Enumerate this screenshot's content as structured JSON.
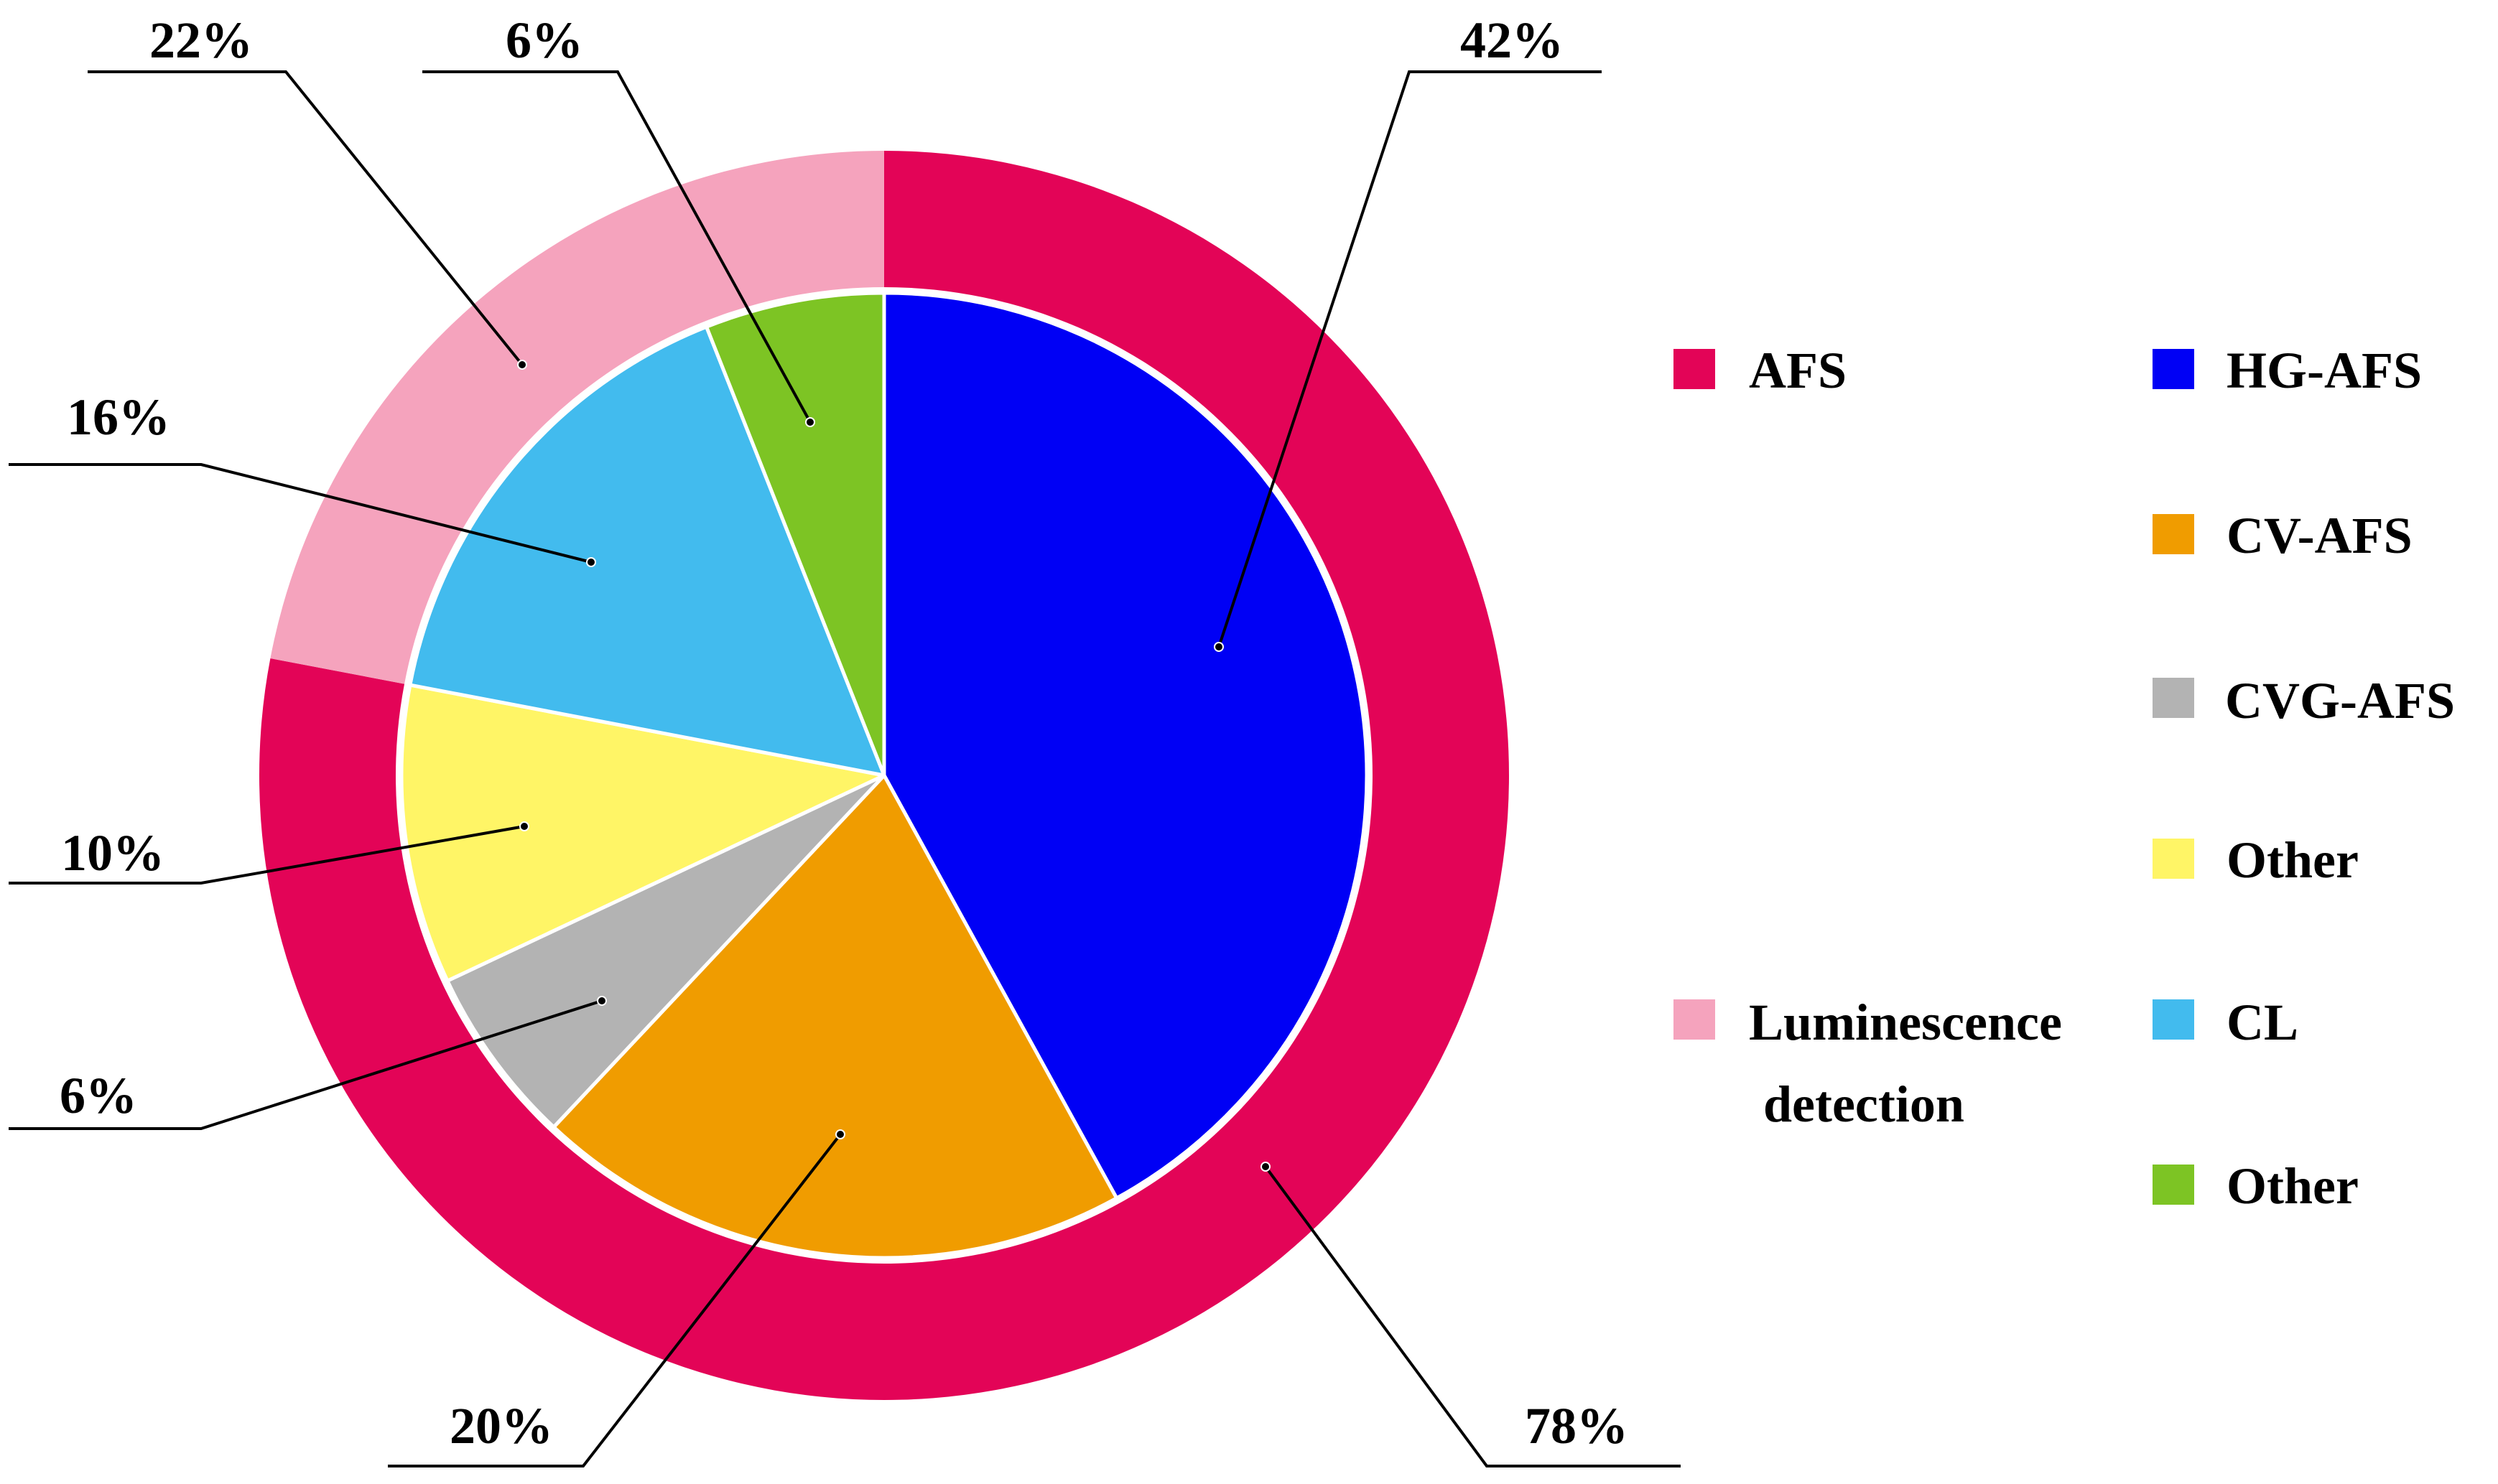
{
  "chart_data": {
    "type": "pie",
    "title": "",
    "rings": [
      {
        "name": "outer",
        "slices": [
          {
            "label": "AFS",
            "value": 78,
            "value_label": "78%",
            "color": "#e30457"
          },
          {
            "label": "Luminescence detection",
            "value": 22,
            "value_label": "22%",
            "color": "#f5a3bd"
          }
        ]
      },
      {
        "name": "inner",
        "slices": [
          {
            "label": "HG-AFS",
            "value": 42,
            "value_label": "42%",
            "color": "#0000f5"
          },
          {
            "label": "CV-AFS",
            "value": 20,
            "value_label": "20%",
            "color": "#f09c00"
          },
          {
            "label": "CVG-AFS",
            "value": 6,
            "value_label": "6%",
            "color": "#b3b3b3"
          },
          {
            "label": "Other",
            "value": 10,
            "value_label": "10%",
            "color": "#fff566"
          },
          {
            "label": "CL",
            "value": 16,
            "value_label": "16%",
            "color": "#42bbee"
          },
          {
            "label": "Other",
            "value": 6,
            "value_label": "6%",
            "color": "#7dc424"
          }
        ]
      }
    ],
    "legend": {
      "position": "right",
      "groups": [
        {
          "label": "AFS",
          "color": "#e30457",
          "children": [
            {
              "label": "HG-AFS",
              "color": "#0000f5"
            },
            {
              "label": "CV-AFS",
              "color": "#f09c00"
            },
            {
              "label": "CVG-AFS",
              "color": "#b3b3b3"
            },
            {
              "label": "Other",
              "color": "#fff566"
            }
          ]
        },
        {
          "label_lines": [
            "Luminescence",
            "detection"
          ],
          "color": "#f5a3bd",
          "children": [
            {
              "label": "CL",
              "color": "#42bbee"
            },
            {
              "label": "Other",
              "color": "#7dc424"
            }
          ]
        }
      ]
    }
  }
}
